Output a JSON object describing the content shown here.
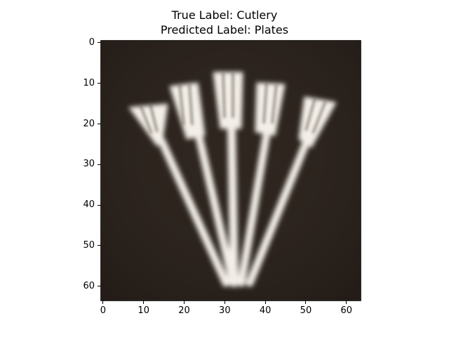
{
  "figure": {
    "title_line_1": "True Label: Cutlery",
    "title_line_2": "Predicted Label: Plates"
  },
  "image": {
    "description_icon": "forks-photo",
    "background_color": "#2f2620",
    "object_color": "#f3efe8"
  },
  "axes": {
    "x_ticks": [
      "0",
      "10",
      "20",
      "30",
      "40",
      "50",
      "60"
    ],
    "y_ticks": [
      "0",
      "10",
      "20",
      "30",
      "40",
      "50",
      "60"
    ],
    "x_tick_values": [
      0,
      10,
      20,
      30,
      40,
      50,
      60
    ],
    "y_tick_values": [
      0,
      10,
      20,
      30,
      40,
      50,
      60
    ],
    "xlim": [
      -0.5,
      63.5
    ],
    "ylim": [
      63.5,
      -0.5
    ]
  }
}
